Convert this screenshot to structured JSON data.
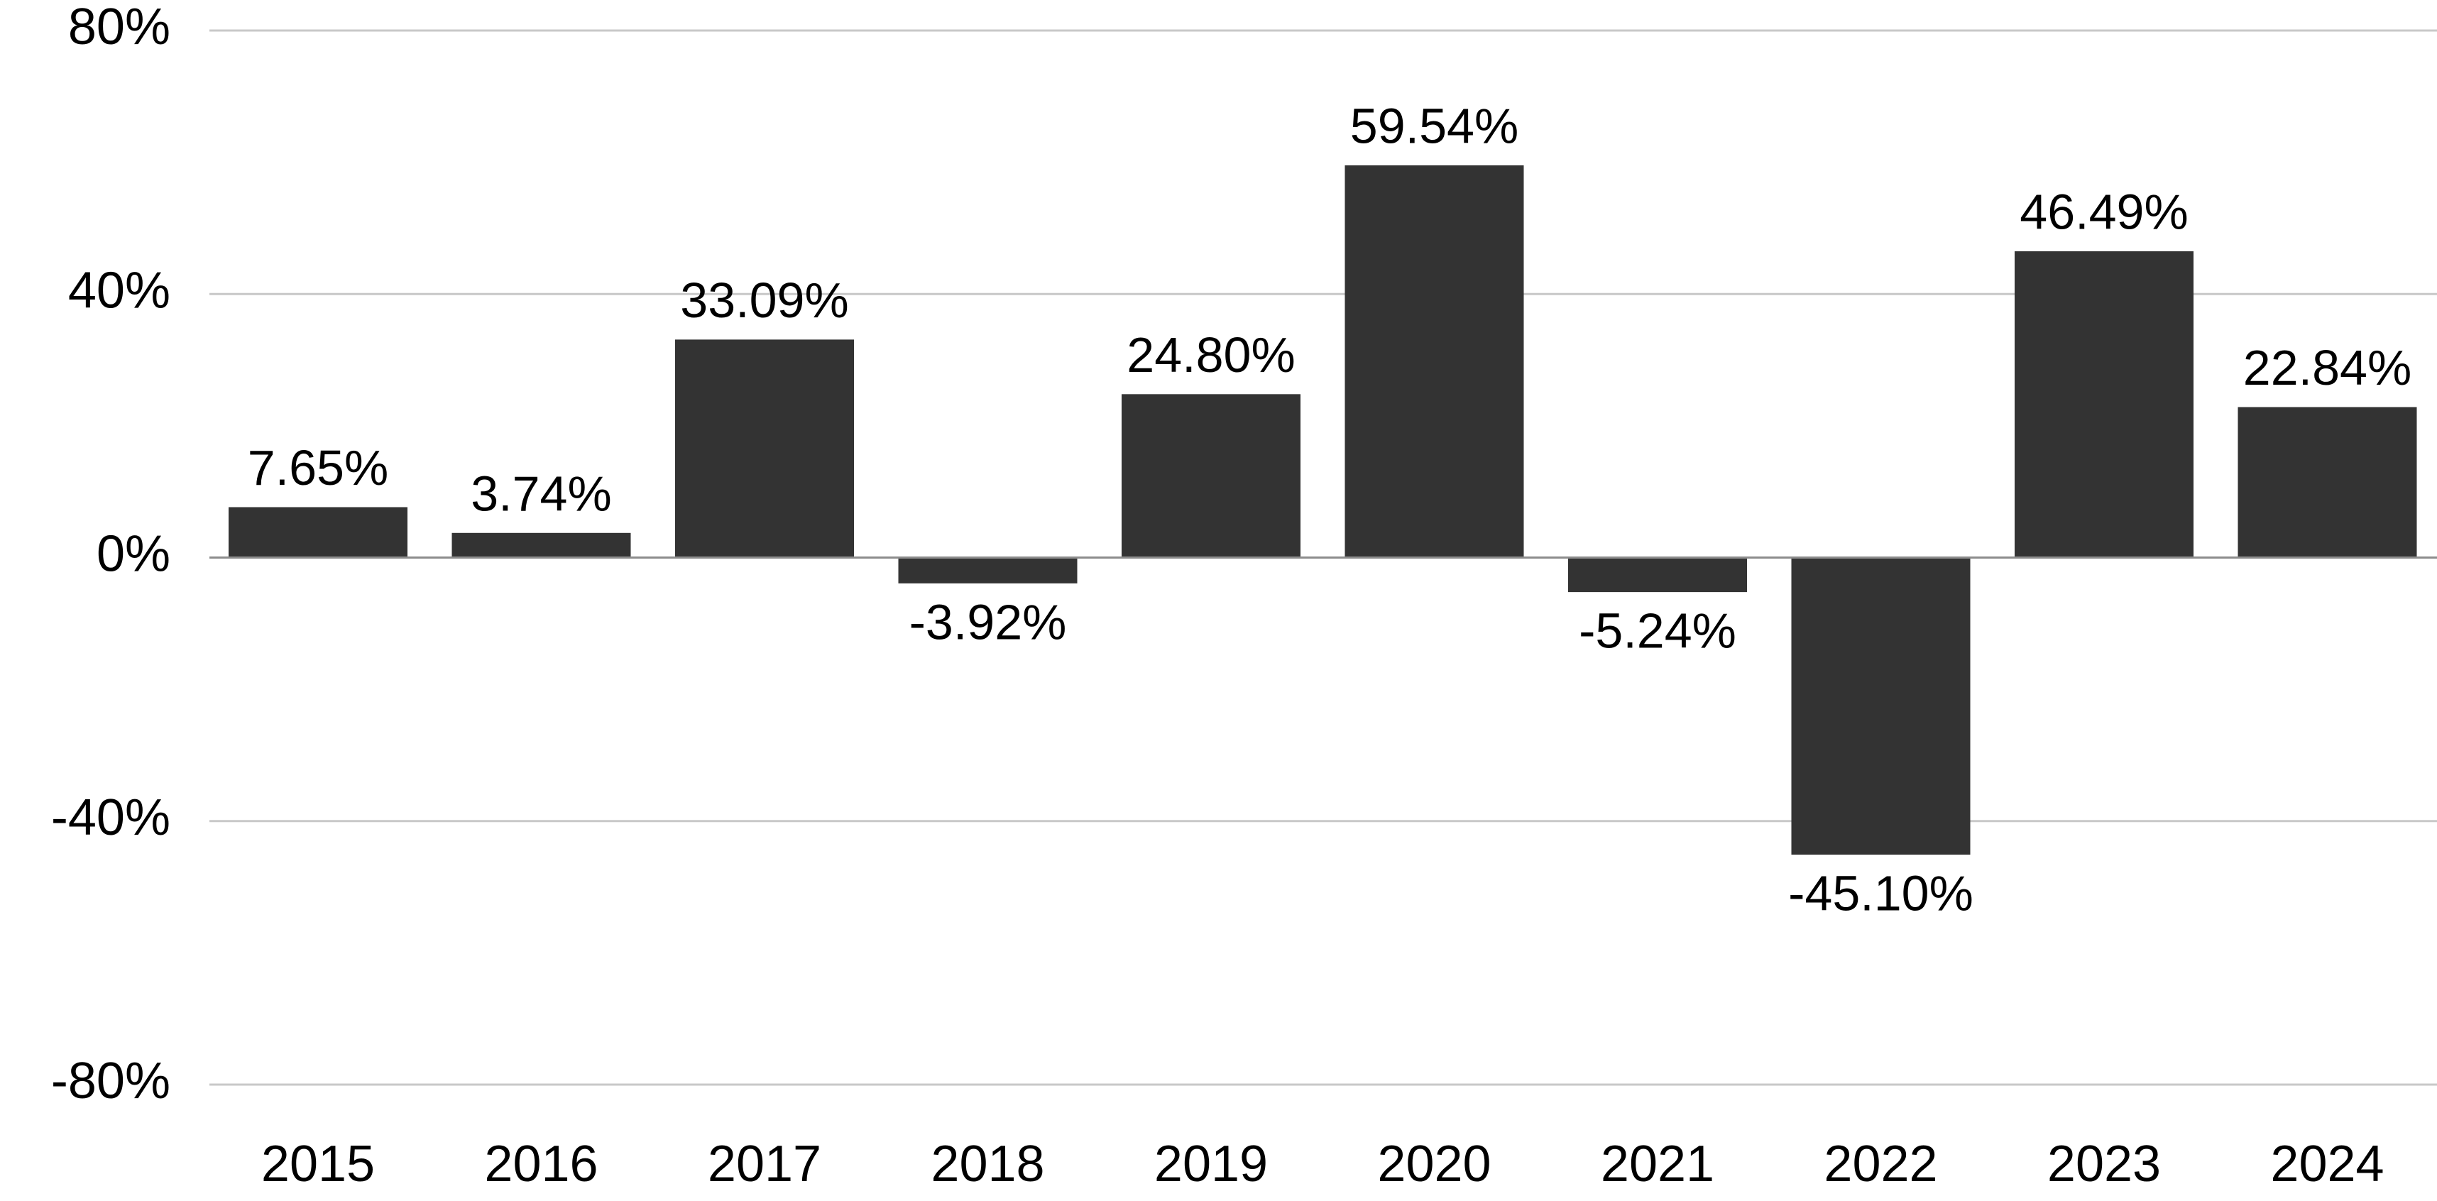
{
  "chart_data": {
    "type": "bar",
    "title": "",
    "xlabel": "",
    "ylabel": "",
    "categories": [
      "2015",
      "2016",
      "2017",
      "2018",
      "2019",
      "2020",
      "2021",
      "2022",
      "2023",
      "2024"
    ],
    "values": [
      7.65,
      3.74,
      33.09,
      -3.92,
      24.8,
      59.54,
      -5.24,
      -45.1,
      46.49,
      22.84
    ],
    "data_labels": [
      "7.65%",
      "3.74%",
      "33.09%",
      "-3.92%",
      "24.80%",
      "59.54%",
      "-5.24%",
      "-45.10%",
      "46.49%",
      "22.84%"
    ],
    "ylim": [
      -80,
      80
    ],
    "y_ticks": [
      80,
      40,
      0,
      -40,
      -80
    ],
    "y_tick_labels": [
      "80%",
      "40%",
      "0%",
      "-40%",
      "-80%"
    ],
    "grid": true,
    "legend": "none",
    "colors": {
      "bar": "#333333",
      "grid": "#c8c8c8",
      "zero_line": "#8c8c8c",
      "text": "#000000"
    }
  }
}
